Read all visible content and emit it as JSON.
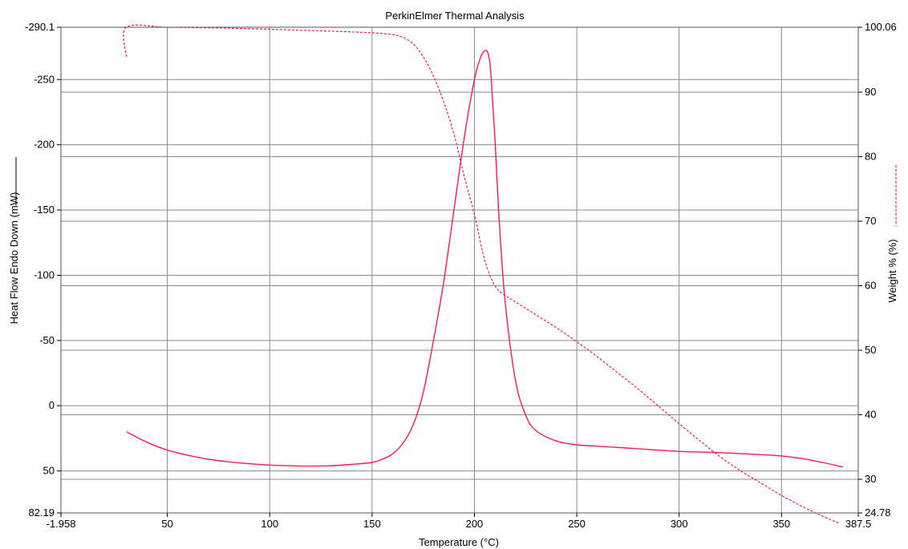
{
  "chart_data": {
    "type": "line",
    "title": "PerkinElmer Thermal Analysis",
    "xlabel": "Temperature (°C)",
    "ylabel_left": "Heat Flow Endo Down (mW)",
    "ylabel_right": "Weight % (%)",
    "xlim": [
      -1.958,
      387.5
    ],
    "ylim_left": [
      -290.1,
      82.19
    ],
    "ylim_left_inverted": true,
    "ylim_right": [
      24.78,
      100.06
    ],
    "x_ticks": [
      "-1.958",
      "50",
      "100",
      "150",
      "200",
      "250",
      "300",
      "350",
      "387.5"
    ],
    "y_left_ticks": [
      "-290.1",
      "-250",
      "-200",
      "-150",
      "-100",
      "-50",
      "0",
      "50",
      "82.19"
    ],
    "y_right_ticks": [
      "100.06",
      "90",
      "80",
      "70",
      "60",
      "50",
      "40",
      "30",
      "24.78"
    ],
    "grid": true,
    "colors": {
      "heat_flow": "#ff1a4a",
      "weight": "#ff1a4a"
    },
    "series": [
      {
        "axis": "left",
        "style": "solid",
        "x": [
          30,
          40,
          50,
          60,
          70,
          80,
          90,
          100,
          110,
          120,
          130,
          140,
          150,
          155,
          160,
          165,
          170,
          175,
          180,
          185,
          190,
          195,
          200,
          203,
          205,
          206,
          207,
          208,
          210,
          212,
          215,
          220,
          225,
          230,
          240,
          250,
          260,
          280,
          300,
          320,
          340,
          350,
          360,
          370,
          380
        ],
        "y": [
          20,
          28,
          34,
          38,
          41,
          43,
          44.5,
          45.5,
          46,
          46.3,
          46,
          45,
          43.5,
          41,
          37,
          29,
          15,
          -10,
          -50,
          -95,
          -150,
          -205,
          -250,
          -267,
          -272,
          -272,
          -268,
          -255,
          -205,
          -145,
          -80,
          -20,
          7,
          19,
          27,
          30,
          31,
          33,
          35,
          36,
          37.5,
          38.5,
          40.5,
          43.5,
          47
        ]
      },
      {
        "axis": "right",
        "style": "dashed",
        "x": [
          30,
          30,
          50,
          75,
          100,
          125,
          150,
          160,
          165,
          170,
          175,
          180,
          185,
          190,
          195,
          200,
          205,
          210,
          215,
          220,
          230,
          240,
          250,
          260,
          270,
          280,
          290,
          300,
          310,
          320,
          330,
          340,
          350,
          360,
          370,
          378
        ],
        "y": [
          95.5,
          100.06,
          100.05,
          99.95,
          99.75,
          99.5,
          99.2,
          98.9,
          98.5,
          97.5,
          95.5,
          92.5,
          88.5,
          83.5,
          77,
          71,
          64,
          60,
          58.5,
          57.5,
          55.5,
          53.5,
          51.3,
          49,
          46.5,
          44,
          41.3,
          38.6,
          36,
          33.5,
          31.3,
          29.4,
          27.5,
          25.8,
          24.3,
          23.2
        ]
      }
    ]
  }
}
